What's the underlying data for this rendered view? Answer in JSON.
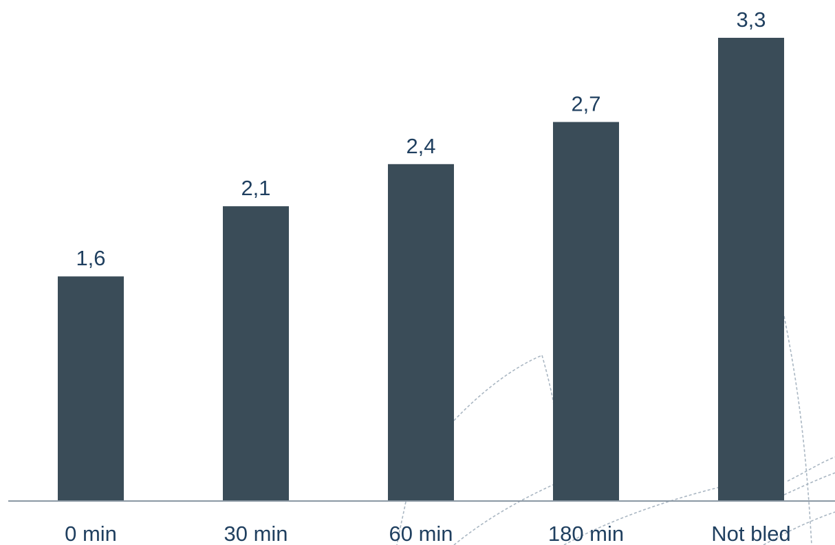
{
  "chart_data": {
    "type": "bar",
    "categories": [
      "0 min",
      "30 min",
      "60 min",
      "180 min",
      "Not bled"
    ],
    "values": [
      1.6,
      2.1,
      2.4,
      2.7,
      3.3
    ],
    "value_labels": [
      "1,6",
      "2,1",
      "2,4",
      "2,7",
      "3,3"
    ],
    "title": "",
    "xlabel": "",
    "ylabel": "",
    "ylim": [
      0,
      3.3
    ],
    "grid": false,
    "legend": "none"
  },
  "colors": {
    "bar": "#3a4c58",
    "value_label": "#1f3f5f",
    "tick_label": "#1f3f5f",
    "axis": "#8a97a3",
    "decoration": "#a9b6c2"
  }
}
